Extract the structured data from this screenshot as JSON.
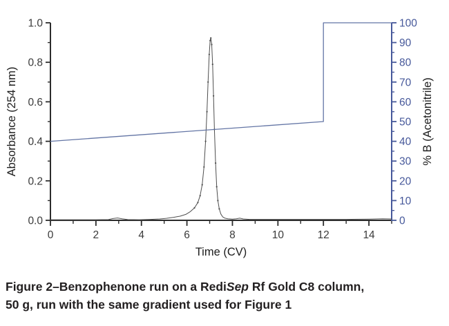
{
  "figure": {
    "caption": {
      "line1_prefix": "Figure 2–Benzophenone run on a Redi",
      "line1_italic": "Sep",
      "line1_suffix": " Rf Gold C8 column,",
      "line2": "50 g, run with the same gradient used for Figure 1"
    }
  },
  "chart_data": {
    "type": "line",
    "title": "",
    "xlabel": "Time (CV)",
    "ylabel_left": "Absorbance (254 nm)",
    "ylabel_right": "% B (Acetonitrile)",
    "xlim": [
      0,
      15
    ],
    "ylim_left": [
      0.0,
      1.0
    ],
    "ylim_right": [
      0,
      100
    ],
    "grid": false,
    "legend_position": "none",
    "x_ticks": {
      "major": [
        0,
        2,
        4,
        6,
        8,
        10,
        12,
        14
      ],
      "major_labels": [
        "0",
        "2",
        "4",
        "6",
        "8",
        "10",
        "12",
        "14"
      ],
      "minor": [
        1,
        3,
        5,
        7,
        9,
        11,
        13,
        15
      ]
    },
    "y_left_ticks": {
      "major": [
        0.0,
        0.2,
        0.4,
        0.6,
        0.8,
        1.0
      ],
      "major_labels": [
        "0.0",
        "0.2",
        "0.4",
        "0.6",
        "0.8",
        "1.0"
      ],
      "minor": [
        0.1,
        0.3,
        0.5,
        0.7,
        0.9
      ]
    },
    "y_right_ticks": {
      "major": [
        0,
        10,
        20,
        30,
        40,
        50,
        60,
        70,
        80,
        90,
        100
      ],
      "major_labels": [
        "0",
        "10",
        "20",
        "30",
        "40",
        "50",
        "60",
        "70",
        "80",
        "90",
        "100"
      ],
      "minor": [
        5,
        15,
        25,
        35,
        45,
        55,
        65,
        75,
        85,
        95
      ]
    },
    "colors": {
      "left_axis": "#2b2b2b",
      "right_axis": "#46589a",
      "tick_label_left": "#3a3a3a",
      "tick_label_right": "#46589a",
      "trace": "#4d4d4d",
      "gradient_line": "#6274a4",
      "caption": "#221f20"
    },
    "series": [
      {
        "name": "Absorbance (254 nm)",
        "axis": "left",
        "color": "#4d4d4d",
        "width": 1,
        "points": [
          [
            0,
            0.003
          ],
          [
            1,
            0.003
          ],
          [
            2,
            0.003
          ],
          [
            2.55,
            0.004
          ],
          [
            2.75,
            0.009
          ],
          [
            2.95,
            0.012
          ],
          [
            3.15,
            0.008
          ],
          [
            3.4,
            0.004
          ],
          [
            3.9,
            0.003
          ],
          [
            4.4,
            0.005
          ],
          [
            4.8,
            0.007
          ],
          [
            5.1,
            0.01
          ],
          [
            5.4,
            0.015
          ],
          [
            5.7,
            0.021
          ],
          [
            5.95,
            0.03
          ],
          [
            6.15,
            0.044
          ],
          [
            6.33,
            0.063
          ],
          [
            6.48,
            0.09
          ],
          [
            6.58,
            0.125
          ],
          [
            6.67,
            0.18
          ],
          [
            6.75,
            0.27
          ],
          [
            6.82,
            0.4
          ],
          [
            6.88,
            0.55
          ],
          [
            6.93,
            0.7
          ],
          [
            6.98,
            0.84
          ],
          [
            7.02,
            0.91
          ],
          [
            7.05,
            0.923
          ],
          [
            7.09,
            0.89
          ],
          [
            7.13,
            0.79
          ],
          [
            7.17,
            0.63
          ],
          [
            7.21,
            0.46
          ],
          [
            7.26,
            0.29
          ],
          [
            7.31,
            0.17
          ],
          [
            7.36,
            0.1
          ],
          [
            7.42,
            0.058
          ],
          [
            7.49,
            0.032
          ],
          [
            7.57,
            0.018
          ],
          [
            7.67,
            0.011
          ],
          [
            7.8,
            0.008
          ],
          [
            8.0,
            0.006
          ],
          [
            8.17,
            0.008
          ],
          [
            8.32,
            0.011
          ],
          [
            8.48,
            0.007
          ],
          [
            8.75,
            0.005
          ],
          [
            9.3,
            0.005
          ],
          [
            10,
            0.005
          ],
          [
            11,
            0.005
          ],
          [
            12,
            0.005
          ],
          [
            13,
            0.005
          ],
          [
            14,
            0.006
          ],
          [
            14.6,
            0.008
          ],
          [
            15,
            0.007
          ]
        ]
      },
      {
        "name": "% B (Acetonitrile)",
        "axis": "right",
        "color": "#6274a4",
        "width": 1.3,
        "points": [
          [
            0,
            40
          ],
          [
            12,
            50
          ],
          [
            12,
            100
          ],
          [
            15,
            100
          ]
        ]
      }
    ]
  }
}
